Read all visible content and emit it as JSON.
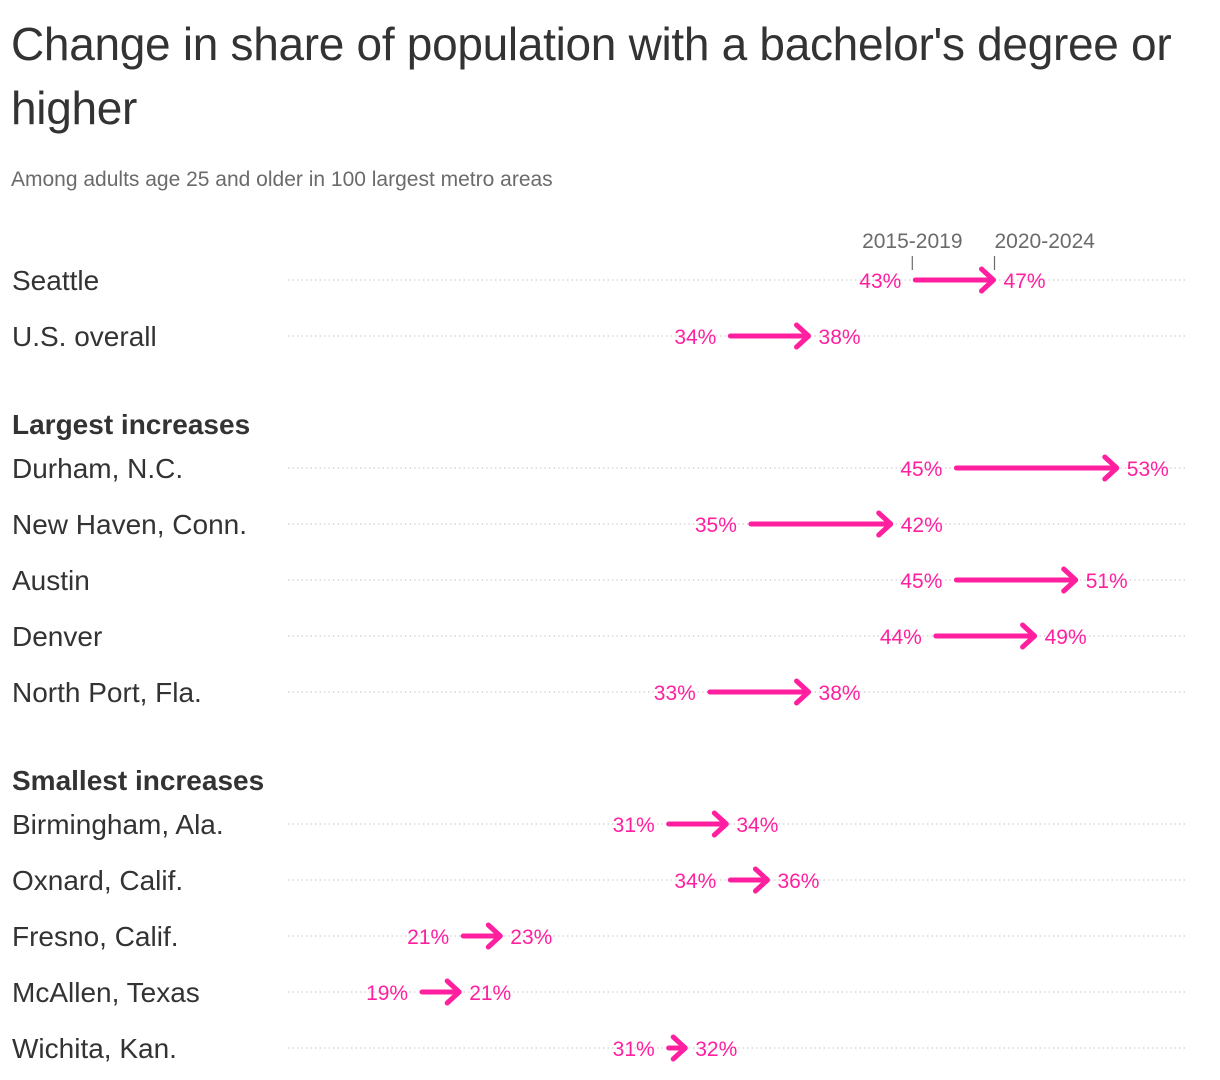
{
  "title": "Change in share of population with a bachelor's degree or higher",
  "subtitle": "Among adults age 25 and older in 100 largest metro areas",
  "colors": {
    "accent": "#ff1f9f",
    "text": "#333333",
    "muted": "#6b6b6b",
    "grid": "#d0d0d0"
  },
  "chart_data": {
    "type": "arrow",
    "legend": {
      "start_label": "2015-2019",
      "end_label": "2020-2024"
    },
    "rows": [
      {
        "kind": "row",
        "label": "Seattle",
        "start": 43,
        "end": 47,
        "start_text": "43%",
        "end_text": "47%",
        "show_legend": true
      },
      {
        "kind": "row",
        "label": "U.S. overall",
        "start": 34,
        "end": 38,
        "start_text": "34%",
        "end_text": "38%"
      },
      {
        "kind": "group",
        "label": "Largest increases"
      },
      {
        "kind": "row",
        "label": "Durham, N.C.",
        "start": 45,
        "end": 53,
        "start_text": "45%",
        "end_text": "53%"
      },
      {
        "kind": "row",
        "label": "New Haven, Conn.",
        "start": 35,
        "end": 42,
        "start_text": "35%",
        "end_text": "42%"
      },
      {
        "kind": "row",
        "label": "Austin",
        "start": 45,
        "end": 51,
        "start_text": "45%",
        "end_text": "51%"
      },
      {
        "kind": "row",
        "label": "Denver",
        "start": 44,
        "end": 49,
        "start_text": "44%",
        "end_text": "49%"
      },
      {
        "kind": "row",
        "label": "North Port, Fla.",
        "start": 33,
        "end": 38,
        "start_text": "33%",
        "end_text": "38%"
      },
      {
        "kind": "group",
        "label": "Smallest increases"
      },
      {
        "kind": "row",
        "label": "Birmingham, Ala.",
        "start": 31,
        "end": 34,
        "start_text": "31%",
        "end_text": "34%"
      },
      {
        "kind": "row",
        "label": "Oxnard, Calif.",
        "start": 34,
        "end": 36,
        "start_text": "34%",
        "end_text": "36%"
      },
      {
        "kind": "row",
        "label": "Fresno, Calif.",
        "start": 21,
        "end": 23,
        "start_text": "21%",
        "end_text": "23%"
      },
      {
        "kind": "row",
        "label": "McAllen, Texas",
        "start": 19,
        "end": 21,
        "start_text": "19%",
        "end_text": "21%"
      },
      {
        "kind": "row",
        "label": "Wichita, Kan.",
        "start": 31,
        "end": 32,
        "start_text": "31%",
        "end_text": "32%"
      }
    ]
  }
}
